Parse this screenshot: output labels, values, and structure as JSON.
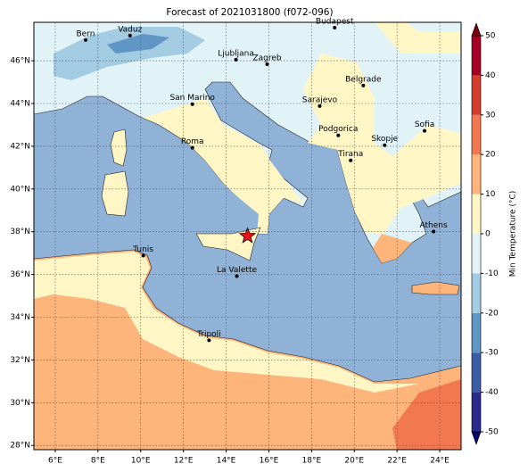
{
  "title": "Forecast of 2021031800 (f072-096)",
  "map": {
    "lonlim": [
      5,
      25
    ],
    "latlim": [
      27.8,
      47.8
    ],
    "grid": true,
    "lon_ticks": [
      {
        "value": 6,
        "label": "6°E"
      },
      {
        "value": 8,
        "label": "8°E"
      },
      {
        "value": 10,
        "label": "10°E"
      },
      {
        "value": 12,
        "label": "12°E"
      },
      {
        "value": 14,
        "label": "14°E"
      },
      {
        "value": 16,
        "label": "16°E"
      },
      {
        "value": 18,
        "label": "18°E"
      },
      {
        "value": 20,
        "label": "20°E"
      },
      {
        "value": 22,
        "label": "22°E"
      },
      {
        "value": 24,
        "label": "24°E"
      }
    ],
    "lat_ticks": [
      {
        "value": 28,
        "label": "28°N"
      },
      {
        "value": 30,
        "label": "30°N"
      },
      {
        "value": 32,
        "label": "32°N"
      },
      {
        "value": 34,
        "label": "34°N"
      },
      {
        "value": 36,
        "label": "36°N"
      },
      {
        "value": 38,
        "label": "38°N"
      },
      {
        "value": 40,
        "label": "40°N"
      },
      {
        "value": 42,
        "label": "42°N"
      },
      {
        "value": 44,
        "label": "44°N"
      },
      {
        "value": 46,
        "label": "46°N"
      }
    ],
    "cities": [
      {
        "name": "Bern",
        "lon": 7.42,
        "lat": 46.97
      },
      {
        "name": "Vaduz",
        "lon": 9.5,
        "lat": 47.18
      },
      {
        "name": "Ljubljana",
        "lon": 14.46,
        "lat": 46.05
      },
      {
        "name": "Zagreb",
        "lon": 15.92,
        "lat": 45.84
      },
      {
        "name": "Budapest",
        "lon": 19.08,
        "lat": 47.55
      },
      {
        "name": "Belgrade",
        "lon": 20.42,
        "lat": 44.84
      },
      {
        "name": "San Marino",
        "lon": 12.42,
        "lat": 43.97
      },
      {
        "name": "Sarajevo",
        "lon": 18.38,
        "lat": 43.88
      },
      {
        "name": "Roma",
        "lon": 12.42,
        "lat": 41.93
      },
      {
        "name": "Podgorica",
        "lon": 19.25,
        "lat": 42.51
      },
      {
        "name": "Skopje",
        "lon": 21.42,
        "lat": 42.05
      },
      {
        "name": "Sofia",
        "lon": 23.29,
        "lat": 42.72
      },
      {
        "name": "Tirana",
        "lon": 19.83,
        "lat": 41.34
      },
      {
        "name": "Athens",
        "lon": 23.71,
        "lat": 38.01
      },
      {
        "name": "Tunis",
        "lon": 10.12,
        "lat": 36.88
      },
      {
        "name": "La Valette",
        "lon": 14.5,
        "lat": 35.92
      },
      {
        "name": "Tripoli",
        "lon": 13.2,
        "lat": 32.92
      }
    ],
    "marker": {
      "lon": 15.0,
      "lat": 37.8,
      "color": "#e8141c"
    }
  },
  "colorbar": {
    "label": "Min Temperature (°C)",
    "lim": [
      -50,
      50
    ],
    "ticks": [
      -50,
      -40,
      -30,
      -20,
      -10,
      0,
      10,
      20,
      30,
      40,
      50
    ],
    "colors": [
      "#2a2a8c",
      "#3e5da8",
      "#6096c6",
      "#a3cbe2",
      "#e2f3f8",
      "#fff6c6",
      "#fdb57c",
      "#f2794f",
      "#d43d2d",
      "#a50026"
    ],
    "under": "#08086b",
    "over": "#7a0010"
  }
}
